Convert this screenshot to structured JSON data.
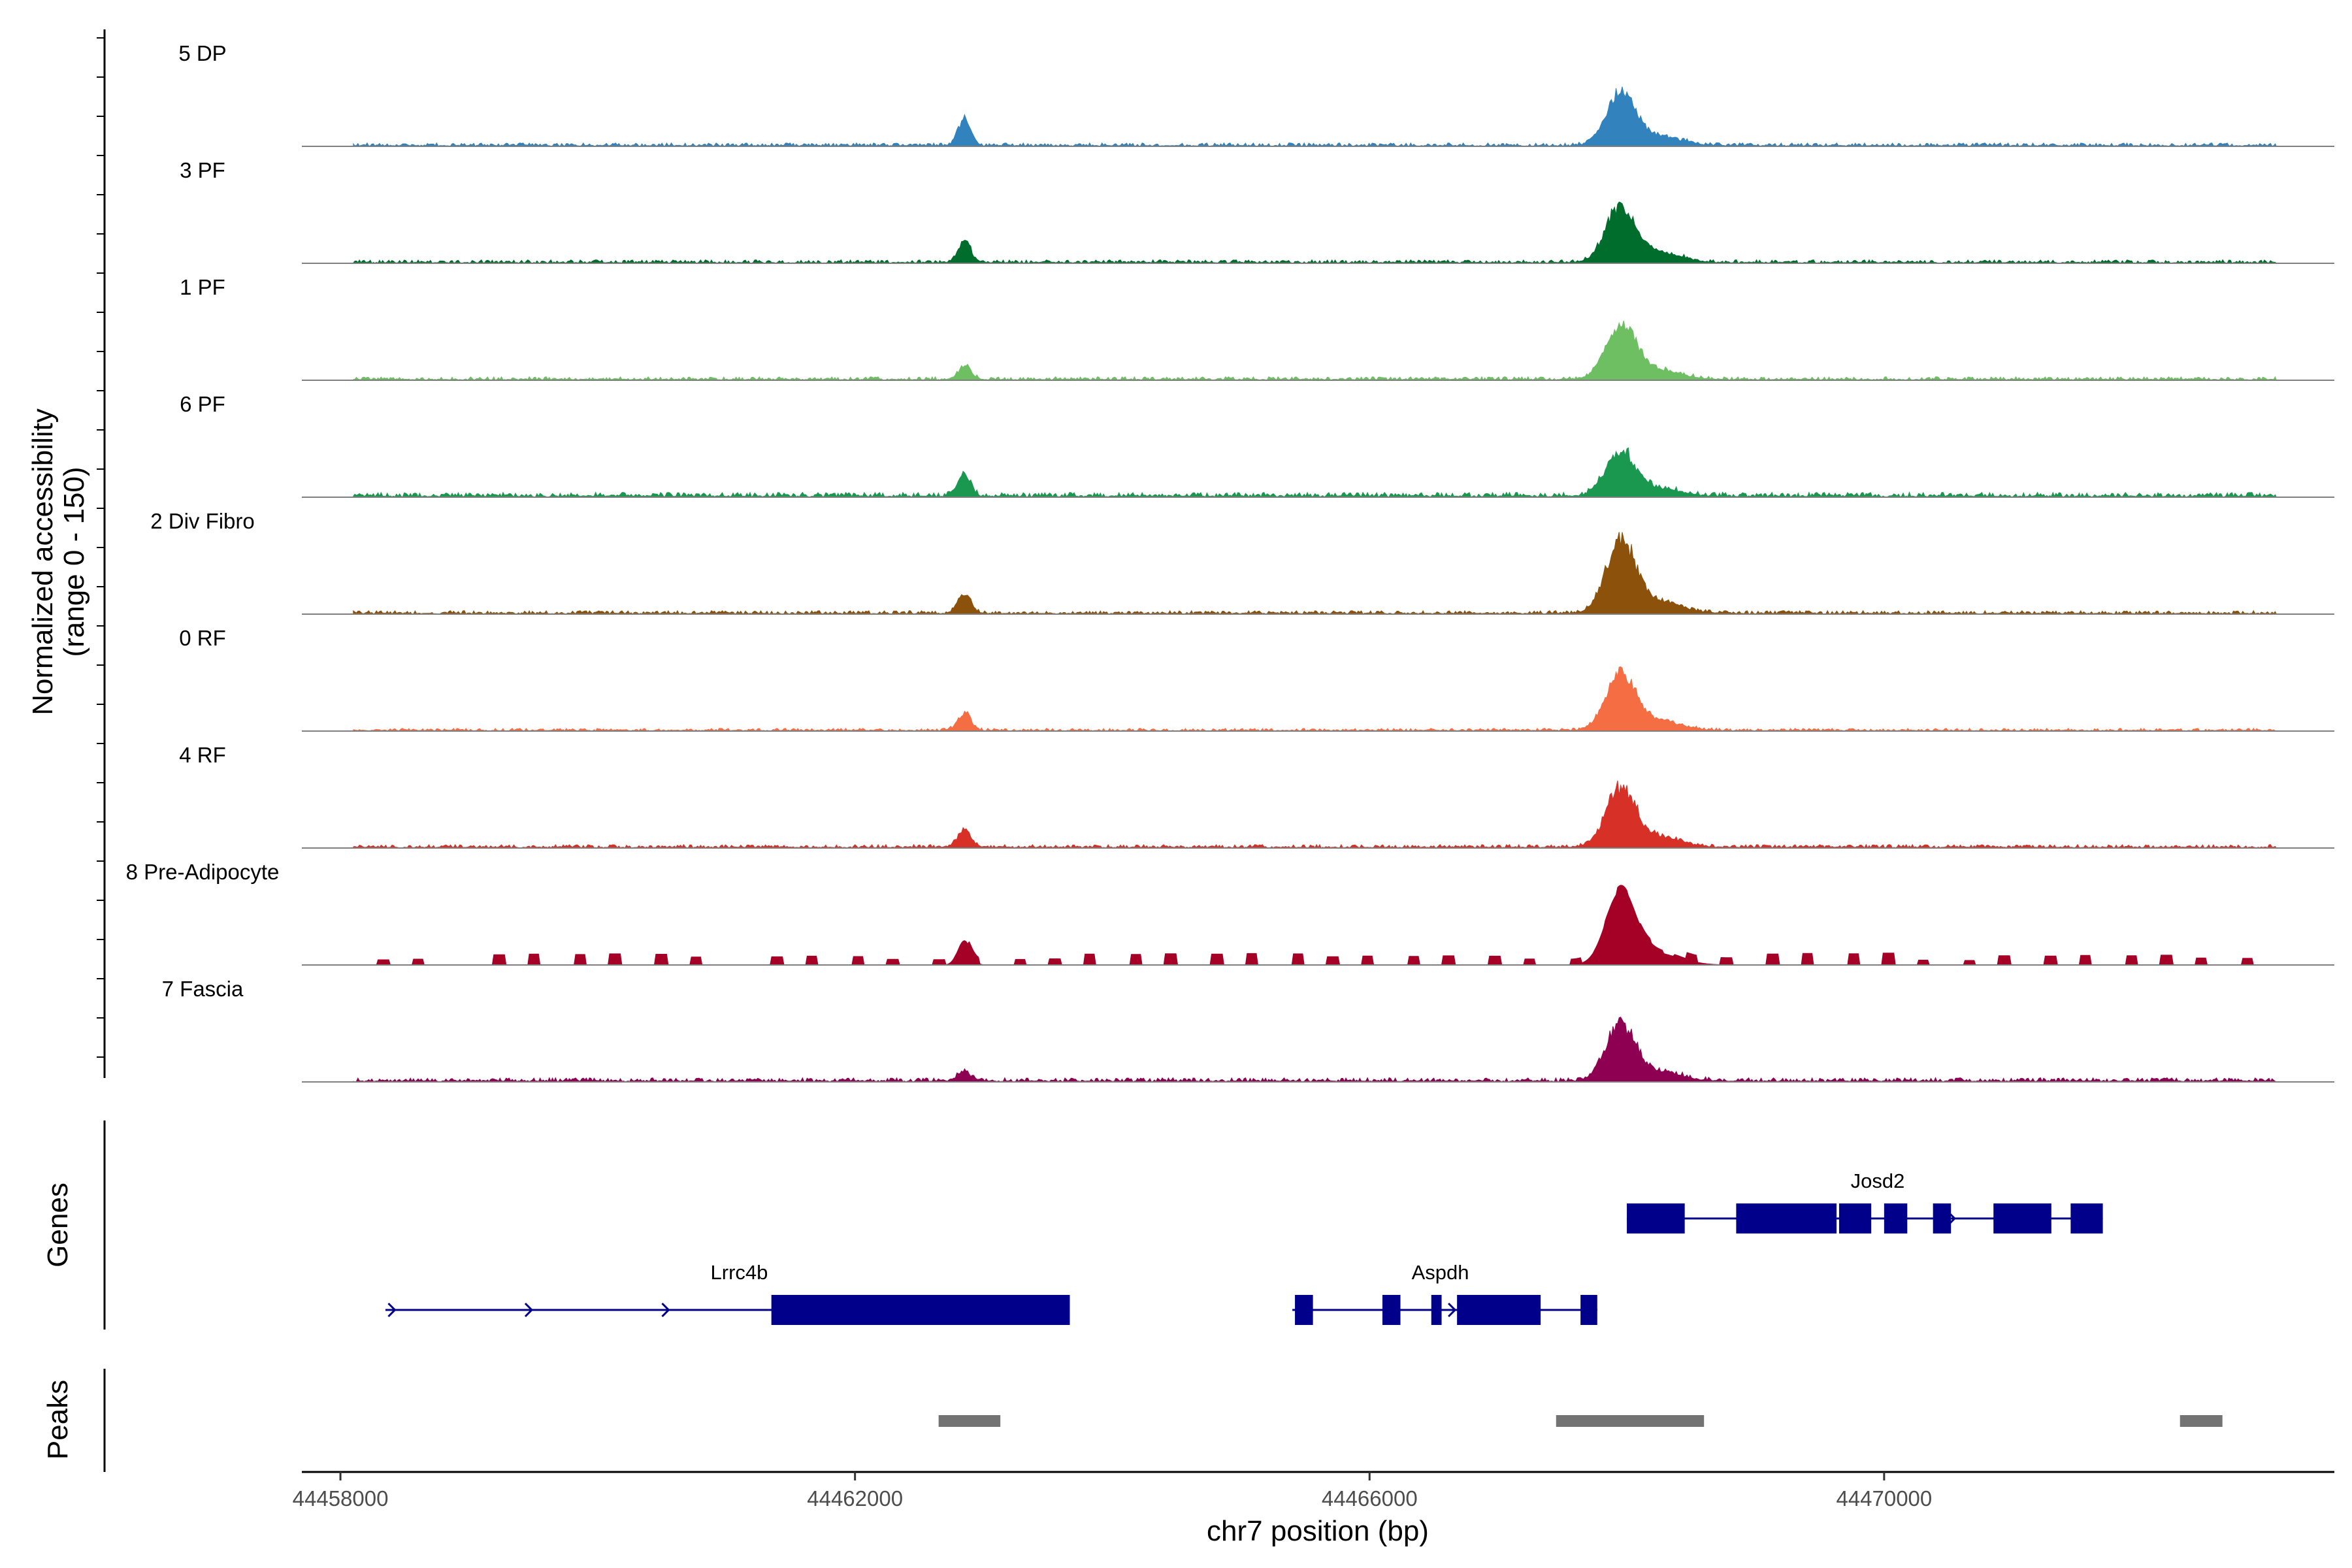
{
  "chart_data": {
    "type": "area",
    "title": "",
    "ylabel_line1": "Normalized accessibility",
    "ylabel_line2": "(range 0 - 150)",
    "xlabel": "chr7 position (bp)",
    "xlim": [
      44457700,
      44473500
    ],
    "ylim": [
      0,
      150
    ],
    "xticks": [
      44458000,
      44462000,
      44466000,
      44470000
    ],
    "xtick_labels": [
      "44458000",
      "44462000",
      "44466000",
      "44470000"
    ],
    "tracks": [
      {
        "name": "5 DP",
        "color": "#3182bd",
        "peak1": 44,
        "peak2": 84,
        "bg": 5,
        "sparse": false
      },
      {
        "name": "3 PF",
        "color": "#006d2c",
        "peak1": 38,
        "peak2": 92,
        "bg": 5,
        "sparse": false
      },
      {
        "name": "1 PF",
        "color": "#6dbf62",
        "peak1": 23,
        "peak2": 88,
        "bg": 5,
        "sparse": false
      },
      {
        "name": "6 PF",
        "color": "#1a9850",
        "peak1": 36,
        "peak2": 72,
        "bg": 7,
        "sparse": false
      },
      {
        "name": "2 Div Fibro",
        "color": "#8c510a",
        "peak1": 32,
        "peak2": 117,
        "bg": 5,
        "sparse": false
      },
      {
        "name": "0 RF",
        "color": "#f46d43",
        "peak1": 30,
        "peak2": 90,
        "bg": 4,
        "sparse": false
      },
      {
        "name": "4 RF",
        "color": "#d73027",
        "peak1": 32,
        "peak2": 94,
        "bg": 5,
        "sparse": false
      },
      {
        "name": "8 Pre-Adipocyte",
        "color": "#a50026",
        "peak1": 45,
        "peak2": 118,
        "bg": 12,
        "sparse": true
      },
      {
        "name": "7 Fascia",
        "color": "#8e0152",
        "peak1": 17,
        "peak2": 90,
        "bg": 6,
        "sparse": false
      }
    ],
    "peak_centers": [
      44462850,
      44467950
    ],
    "genes_panel_label": "Genes",
    "genes": [
      {
        "name": "Josd2",
        "strand": "+",
        "start": 44468000,
        "end": 44471700,
        "exons": [
          [
            44468000,
            44468450
          ],
          [
            44468850,
            44469630
          ],
          [
            44469650,
            44469900
          ],
          [
            44470000,
            44470180
          ],
          [
            44470380,
            44470520
          ],
          [
            44470850,
            44471300
          ],
          [
            44471450,
            44471700
          ]
        ]
      },
      {
        "name": "Lrrc4b",
        "strand": "+",
        "start": 44458350,
        "end": 44463670,
        "exons": [
          [
            44461350,
            44463670
          ]
        ]
      },
      {
        "name": "Aspdh",
        "strand": "+",
        "start": 44465400,
        "end": 44467770,
        "exons": [
          [
            44465420,
            44465560
          ],
          [
            44466100,
            44466240
          ],
          [
            44466480,
            44466560
          ],
          [
            44466680,
            44467330
          ],
          [
            44467640,
            44467770
          ]
        ]
      }
    ],
    "peaks_panel_label": "Peaks",
    "peak_regions": [
      [
        44462650,
        44463130
      ],
      [
        44467450,
        44468600
      ],
      [
        44472300,
        44472630
      ]
    ]
  }
}
